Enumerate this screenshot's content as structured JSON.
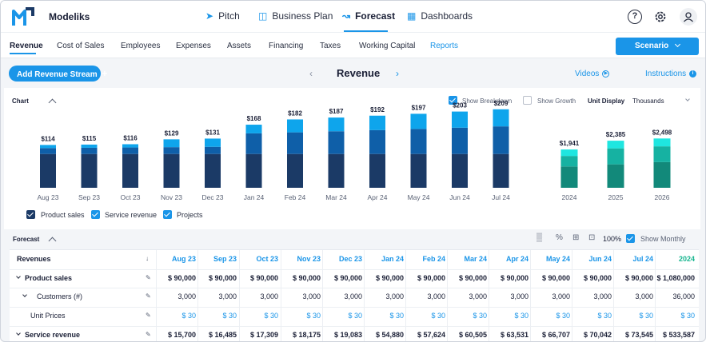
{
  "app": {
    "name": "Modeliks"
  },
  "topnav": [
    {
      "label": "Pitch",
      "icon": "rocket-icon"
    },
    {
      "label": "Business Plan",
      "icon": "document-icon"
    },
    {
      "label": "Forecast",
      "icon": "chart-icon",
      "active": true
    },
    {
      "label": "Dashboards",
      "icon": "grid-icon"
    }
  ],
  "top_icons": [
    "help-icon",
    "gear-icon",
    "user-icon"
  ],
  "tabs": [
    "Revenue",
    "Cost of Sales",
    "Employees",
    "Expenses",
    "Assets",
    "Financing",
    "Taxes",
    "Working Capital",
    "Reports"
  ],
  "active_tab": "Revenue",
  "scenario_label": "Scenario",
  "add_button": "Add Revenue Stream",
  "page_title": "Revenue",
  "videos_label": "Videos",
  "instructions_label": "Instructions",
  "chart_panel": {
    "label": "Chart",
    "show_breakdown": "Show Breakdown",
    "show_growth": "Show Growth",
    "unit_display_label": "Unit Display",
    "unit_display_value": "Thousands"
  },
  "legend": [
    "Product sales",
    "Service revenue",
    "Projects"
  ],
  "colors": {
    "accent": "#1a95e8",
    "product_sales": "#1b3a66",
    "service_revenue": "#0f5fa8",
    "projects": "#0ea5ec",
    "yearly_bottom": "#12897a",
    "yearly_mid": "#16b2a2",
    "yearly_top": "#1fe6e0"
  },
  "chart_data": {
    "type": "bar",
    "stacked": true,
    "monthly": {
      "categories": [
        "Aug 23",
        "Sep 23",
        "Oct 23",
        "Nov 23",
        "Dec 23",
        "Jan 24",
        "Feb 24",
        "Mar 24",
        "Apr 24",
        "May 24",
        "Jun 24",
        "Jul 24"
      ],
      "totals": [
        "$114",
        "$115",
        "$116",
        "$129",
        "$131",
        "$168",
        "$182",
        "$187",
        "$192",
        "$197",
        "$203",
        "$209"
      ],
      "series": [
        {
          "name": "Product sales",
          "values": [
            90,
            90,
            90,
            90,
            90,
            90,
            90,
            90,
            90,
            90,
            90,
            90
          ]
        },
        {
          "name": "Service revenue",
          "values": [
            15.7,
            16.5,
            17.3,
            18.2,
            19.1,
            54.9,
            57.6,
            60.5,
            63.5,
            66.7,
            70.0,
            73.5
          ]
        },
        {
          "name": "Projects",
          "values": [
            8.3,
            8.5,
            8.7,
            20.8,
            21.9,
            23.1,
            34.4,
            36.5,
            38.5,
            40.3,
            43.0,
            45.5
          ]
        }
      ]
    },
    "yearly": {
      "categories": [
        "2024",
        "2025",
        "2026"
      ],
      "totals": [
        "$1,941",
        "$2,385",
        "$2,498"
      ],
      "series": [
        {
          "name": "Product sales",
          "values": [
            1080,
            1188,
            1300
          ]
        },
        {
          "name": "Service revenue",
          "values": [
            533.6,
            810,
            800
          ]
        },
        {
          "name": "Projects",
          "values": [
            327.4,
            387,
            398
          ]
        }
      ]
    }
  },
  "forecast_panel": {
    "label": "Forecast",
    "zoom": "100%",
    "show_monthly": "Show Monthly"
  },
  "table": {
    "header_label": "Revenues",
    "columns": [
      "Aug 23",
      "Sep 23",
      "Oct 23",
      "Nov 23",
      "Dec 23",
      "Jan 24",
      "Feb 24",
      "Mar 24",
      "Apr 24",
      "May 24",
      "Jun 24",
      "Jul 24",
      "2024"
    ],
    "rows": [
      {
        "label": "Product sales",
        "bold": true,
        "values": [
          "$ 90,000",
          "$ 90,000",
          "$ 90,000",
          "$ 90,000",
          "$ 90,000",
          "$ 90,000",
          "$ 90,000",
          "$ 90,000",
          "$ 90,000",
          "$ 90,000",
          "$ 90,000",
          "$ 90,000",
          "$ 1,080,000"
        ]
      },
      {
        "label": "Customers (#)",
        "bold": false,
        "values": [
          "3,000",
          "3,000",
          "3,000",
          "3,000",
          "3,000",
          "3,000",
          "3,000",
          "3,000",
          "3,000",
          "3,000",
          "3,000",
          "3,000",
          "36,000"
        ]
      },
      {
        "label": "Unit Prices",
        "bold": false,
        "values": [
          "$ 30",
          "$ 30",
          "$ 30",
          "$ 30",
          "$ 30",
          "$ 30",
          "$ 30",
          "$ 30",
          "$ 30",
          "$ 30",
          "$ 30",
          "$ 30",
          "$ 30"
        ]
      },
      {
        "label": "Service revenue",
        "bold": true,
        "values": [
          "$ 15,700",
          "$ 16,485",
          "$ 17,309",
          "$ 18,175",
          "$ 19,083",
          "$ 54,880",
          "$ 57,624",
          "$ 60,505",
          "$ 63,531",
          "$ 66,707",
          "$ 70,042",
          "$ 73,545",
          "$ 533,587"
        ]
      }
    ]
  }
}
